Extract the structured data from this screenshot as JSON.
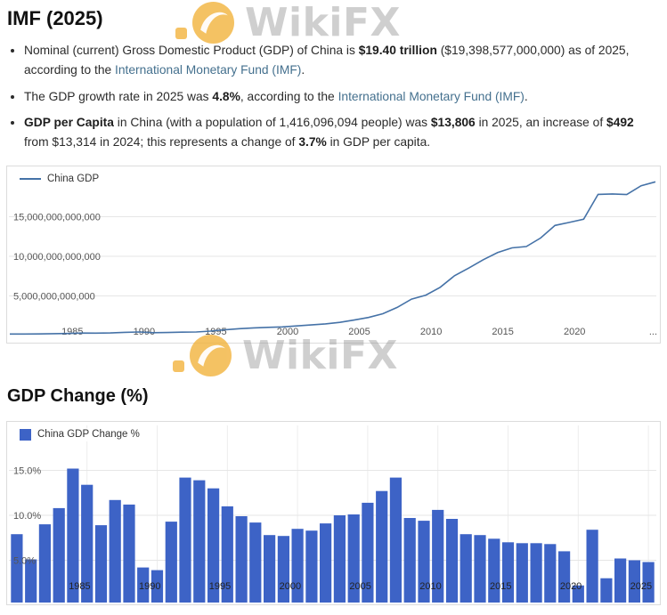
{
  "page": {
    "title": "IMF (2025)",
    "section_gdp_change_title": "GDP Change (%)"
  },
  "watermark": {
    "brand": "WikiFX"
  },
  "colors": {
    "line_series": "#4572a7",
    "bar_series": "#3d63c6",
    "link": "#44708e",
    "watermark_gold": "#f2b33d",
    "gridline": "#e6e6e6"
  },
  "bullets": [
    {
      "seg1": "Nominal (current) Gross Domestic Product (GDP) of China is ",
      "bold1": "$19.40 trillion",
      "seg2": " ($19,398,577,000,000) as of 2025, according to the ",
      "link": "International Monetary Fund (IMF)",
      "seg3": "."
    },
    {
      "seg1": "The GDP growth rate in 2025 was ",
      "bold1": "4.8%",
      "seg2": ", according to the ",
      "link": "International Monetary Fund (IMF)",
      "seg3": "."
    },
    {
      "bold1": "GDP per Capita",
      "seg1": " in China (with a population of 1,416,096,094 people) was ",
      "bold2": "$13,806",
      "seg2": " in 2025, an increase of ",
      "bold3": "$492",
      "seg3": " from $13,314 in 2024; this represents a change of ",
      "bold4": "3.7%",
      "seg4": " in GDP per capita."
    }
  ],
  "chart_data": [
    {
      "type": "line",
      "legend": "China GDP",
      "unit": "USD (billions)",
      "years": [
        1980,
        1981,
        1982,
        1983,
        1984,
        1985,
        1986,
        1987,
        1988,
        1989,
        1990,
        1991,
        1992,
        1993,
        1994,
        1995,
        1996,
        1997,
        1998,
        1999,
        2000,
        2001,
        2002,
        2003,
        2004,
        2005,
        2006,
        2007,
        2008,
        2009,
        2010,
        2011,
        2012,
        2013,
        2014,
        2015,
        2016,
        2017,
        2018,
        2019,
        2020,
        2021,
        2022,
        2023,
        2024,
        2025
      ],
      "values": [
        191,
        196,
        205,
        231,
        260,
        309,
        301,
        327,
        407,
        451,
        361,
        383,
        426,
        445,
        564,
        734,
        864,
        962,
        1029,
        1094,
        1211,
        1339,
        1471,
        1660,
        1955,
        2286,
        2752,
        3550,
        4594,
        5102,
        6087,
        7552,
        8532,
        9570,
        10476,
        11062,
        11233,
        12310,
        13895,
        14280,
        14688,
        17820,
        17882,
        17795,
        18906,
        19399
      ],
      "ylim": [
        0,
        20000
      ],
      "yticks": [
        {
          "value": 5000,
          "label": "5,000,000,000,000"
        },
        {
          "value": 10000,
          "label": "10,000,000,000,000"
        },
        {
          "value": 15000,
          "label": "15,000,000,000,000"
        }
      ],
      "xticks": [
        {
          "year": 1985,
          "label": "1985"
        },
        {
          "year": 1990,
          "label": "1990"
        },
        {
          "year": 1995,
          "label": "1995"
        },
        {
          "year": 2000,
          "label": "2000"
        },
        {
          "year": 2005,
          "label": "2005"
        },
        {
          "year": 2010,
          "label": "2010"
        },
        {
          "year": 2015,
          "label": "2015"
        },
        {
          "year": 2020,
          "label": "2020"
        },
        {
          "year": 2025,
          "label": "..."
        }
      ]
    },
    {
      "type": "bar",
      "legend": "China GDP Change %",
      "unit": "percent",
      "years": [
        1980,
        1981,
        1982,
        1983,
        1984,
        1985,
        1986,
        1987,
        1988,
        1989,
        1990,
        1991,
        1992,
        1993,
        1994,
        1995,
        1996,
        1997,
        1998,
        1999,
        2000,
        2001,
        2002,
        2003,
        2004,
        2005,
        2006,
        2007,
        2008,
        2009,
        2010,
        2011,
        2012,
        2013,
        2014,
        2015,
        2016,
        2017,
        2018,
        2019,
        2020,
        2021,
        2022,
        2023,
        2024,
        2025
      ],
      "values": [
        7.9,
        5.1,
        9.0,
        10.8,
        15.2,
        13.4,
        8.9,
        11.7,
        11.2,
        4.2,
        3.9,
        9.3,
        14.2,
        13.9,
        13.0,
        11.0,
        9.9,
        9.2,
        7.8,
        7.7,
        8.5,
        8.3,
        9.1,
        10.0,
        10.1,
        11.4,
        12.7,
        14.2,
        9.7,
        9.4,
        10.6,
        9.6,
        7.9,
        7.8,
        7.4,
        7.0,
        6.9,
        6.9,
        6.8,
        6.0,
        2.2,
        8.4,
        3.0,
        5.2,
        5.0,
        4.8
      ],
      "ylim": [
        0,
        16
      ],
      "yticks": [
        {
          "value": 5,
          "label": "5.0%"
        },
        {
          "value": 10,
          "label": "10.0%"
        },
        {
          "value": 15,
          "label": "15.0%"
        }
      ],
      "xticks": [
        {
          "year": 1985,
          "label": "1985"
        },
        {
          "year": 1990,
          "label": "1990"
        },
        {
          "year": 1995,
          "label": "1995"
        },
        {
          "year": 2000,
          "label": "2000"
        },
        {
          "year": 2005,
          "label": "2005"
        },
        {
          "year": 2010,
          "label": "2010"
        },
        {
          "year": 2015,
          "label": "2015"
        },
        {
          "year": 2020,
          "label": "2020"
        },
        {
          "year": 2025,
          "label": "2025"
        }
      ]
    }
  ]
}
